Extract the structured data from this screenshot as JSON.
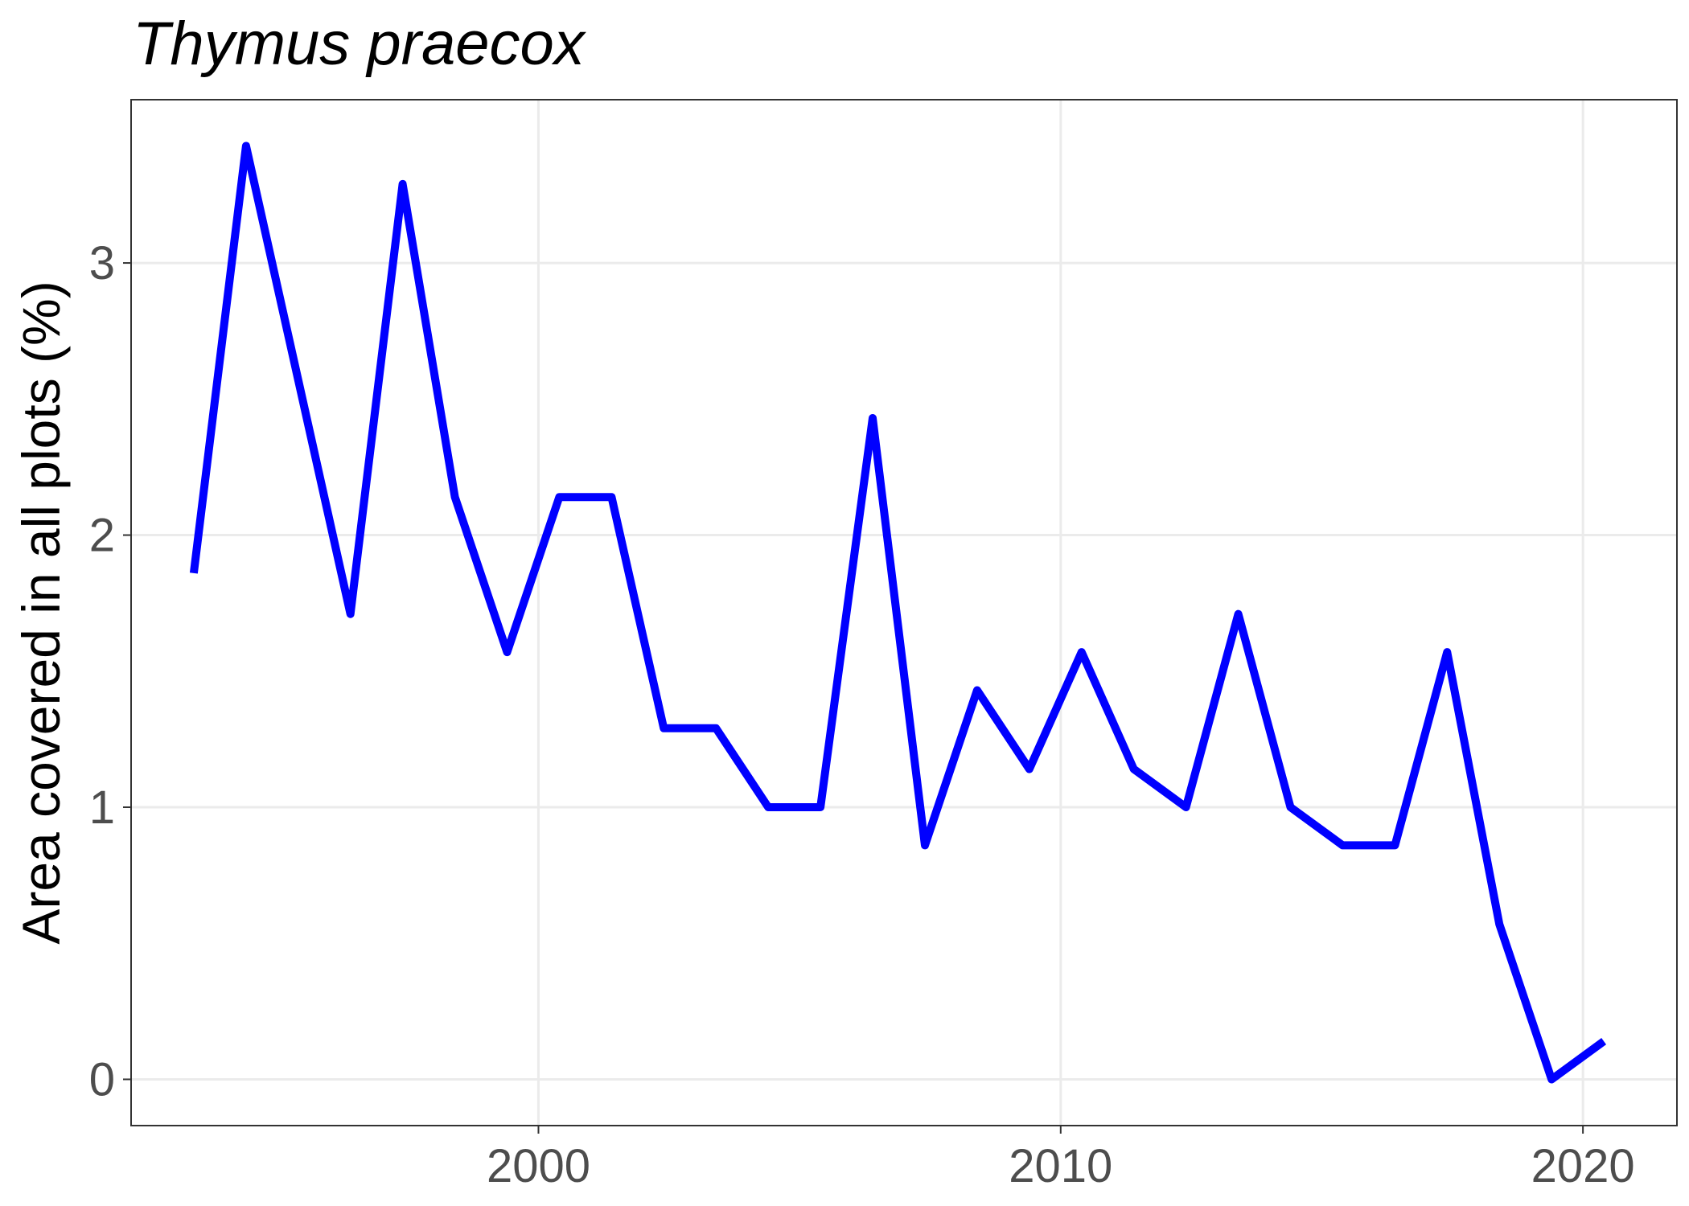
{
  "chart_data": {
    "type": "line",
    "title": "Thymus praecox",
    "xlabel": "",
    "ylabel": "Area covered in all plots (%)",
    "xlim": [
      1992.2,
      2021.8
    ],
    "ylim": [
      -0.17,
      3.6
    ],
    "xticks": [
      2000,
      2010,
      2020
    ],
    "yticks": [
      0,
      1,
      2,
      3
    ],
    "grid": true,
    "legend": "none",
    "series": [
      {
        "color": "#0000ff",
        "x": [
          1993.4,
          1994.4,
          1995.4,
          1996.4,
          1997.4,
          1998.4,
          1999.4,
          2000.4,
          2001.4,
          2002.4,
          2003.4,
          2004.4,
          2005.4,
          2006.4,
          2007.4,
          2008.4,
          2009.4,
          2010.4,
          2011.4,
          2012.4,
          2013.4,
          2014.4,
          2015.4,
          2016.4,
          2017.4,
          2018.4,
          2019.4,
          2020.4
        ],
        "y": [
          1.86,
          3.43,
          2.57,
          1.71,
          3.29,
          2.14,
          1.57,
          2.14,
          2.14,
          1.29,
          1.29,
          1.0,
          1.0,
          2.43,
          0.86,
          1.43,
          1.14,
          1.57,
          1.14,
          1.0,
          1.71,
          1.0,
          0.86,
          0.86,
          1.57,
          0.57,
          0.0,
          0.14
        ]
      }
    ]
  }
}
